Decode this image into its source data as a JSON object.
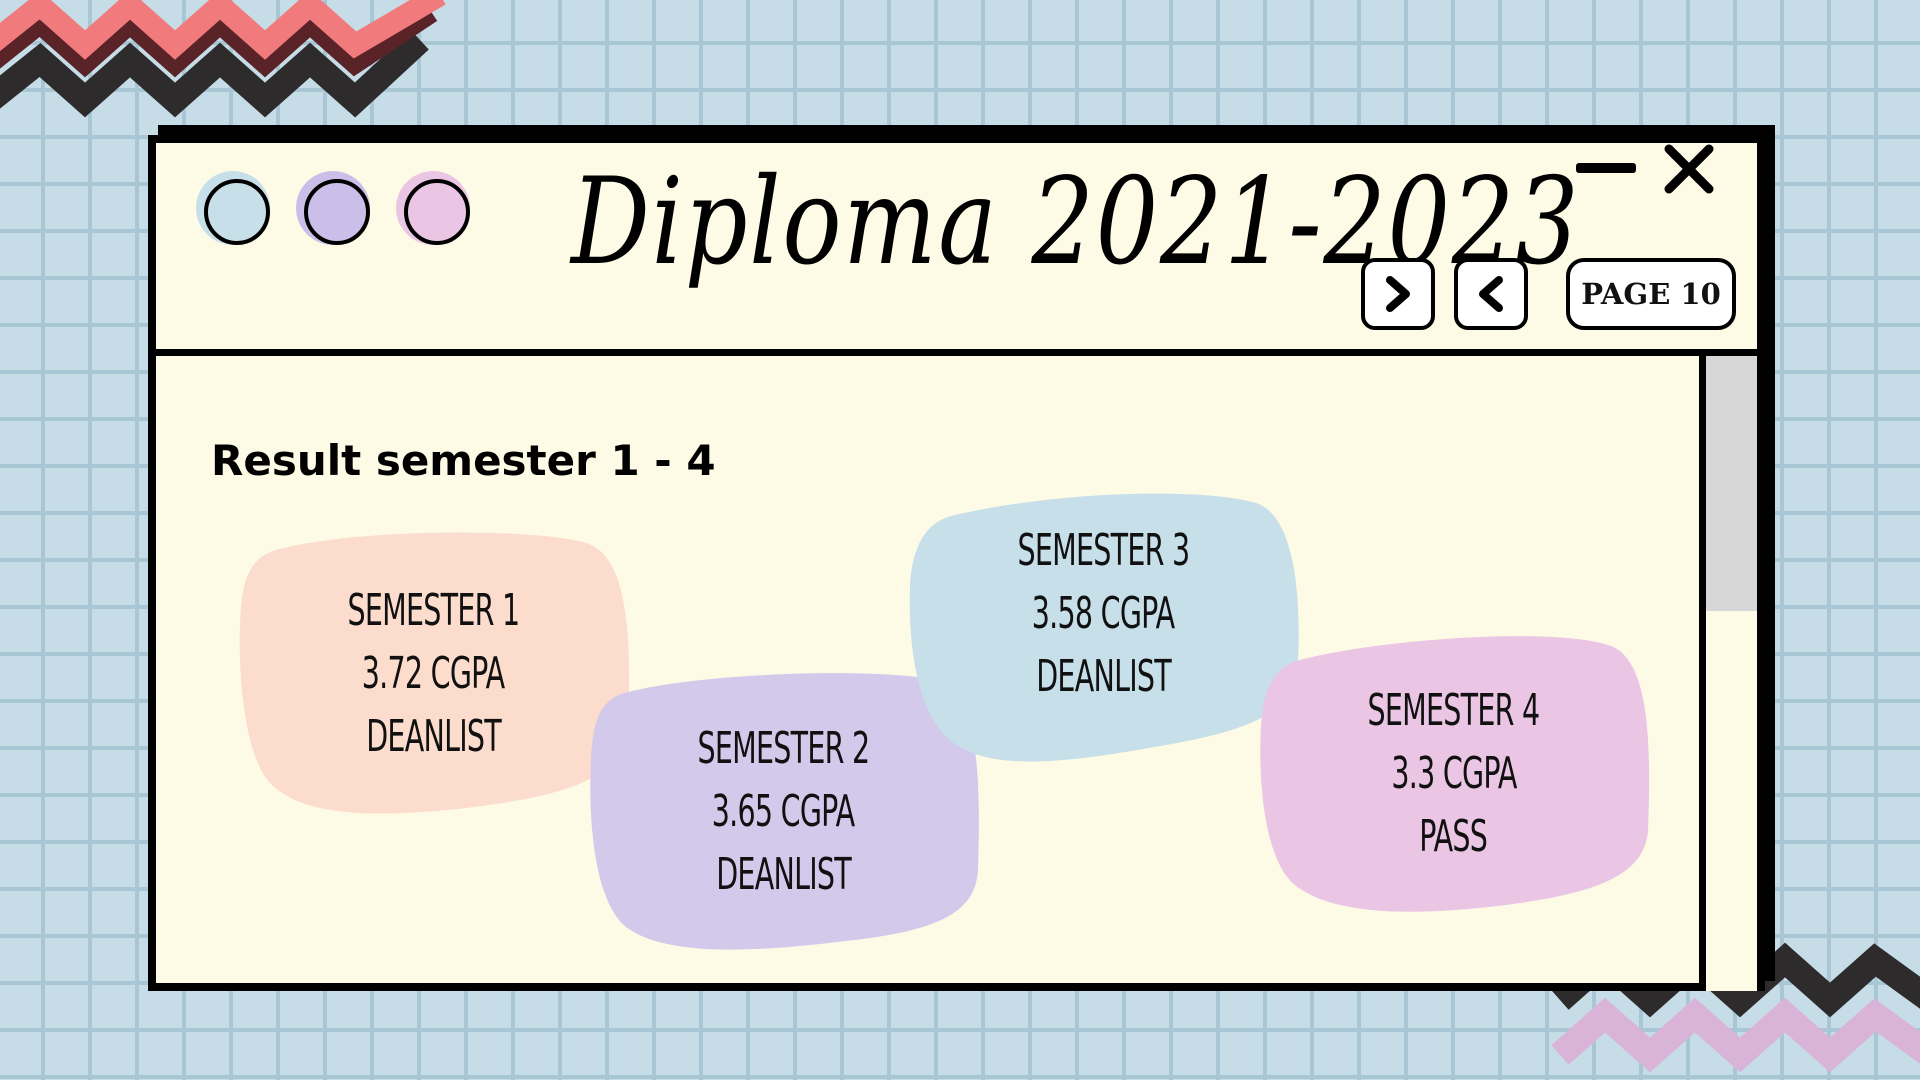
{
  "window": {
    "title": "Diploma 2021-2023",
    "page_label": "PAGE 10",
    "controls": {
      "minimize": "minimize-icon",
      "close": "close-icon",
      "next": "chevron-right-icon",
      "prev": "chevron-left-icon"
    }
  },
  "content": {
    "heading": "Result semester 1 - 4",
    "cards": [
      {
        "name": "SEMESTER 1",
        "cgpa": "3.72 CGPA",
        "status": "DEANLIST",
        "color": "#fcdccd"
      },
      {
        "name": "SEMESTER 2",
        "cgpa": "3.65 CGPA",
        "status": "DEANLIST",
        "color": "#d3c9ea"
      },
      {
        "name": "SEMESTER 3",
        "cgpa": "3.58 CGPA",
        "status": "DEANLIST",
        "color": "#c6dfe9"
      },
      {
        "name": "SEMESTER 4",
        "cgpa": "3.3 CGPA",
        "status": "PASS",
        "color": "#eac6e4"
      }
    ]
  },
  "colors": {
    "background": "#c6dde7",
    "grid": "#a9c6d4",
    "window": "#fdfae6",
    "dot_blue": "#c6dfe9",
    "dot_purple": "#cbbfe9",
    "dot_pink": "#eac6e4",
    "zigzag_red": "#f07a7c",
    "zigzag_dark": "#2e2b2d",
    "zigzag_lilac": "#d9b3d8"
  }
}
